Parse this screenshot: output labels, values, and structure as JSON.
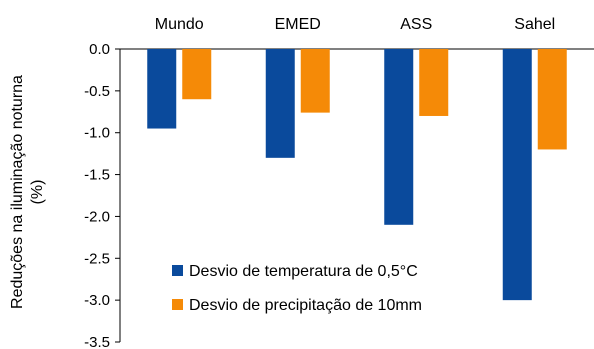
{
  "chart_data": {
    "type": "bar",
    "categories": [
      "Mundo",
      "EMED",
      "ASS",
      "Sahel"
    ],
    "series": [
      {
        "name": "Desvio de temperatura de 0,5°C",
        "color": "#0a4a9c",
        "values": [
          -0.95,
          -1.3,
          -2.1,
          -3.0
        ]
      },
      {
        "name": "Desvio de precipitação de 10mm",
        "color": "#f58a07",
        "values": [
          -0.6,
          -0.76,
          -0.8,
          -1.2
        ]
      }
    ],
    "ylabel": "Reduções na iluminação noturna (%)",
    "ylabel_lines": [
      "Reduções na iluminação noturna",
      "(%)"
    ],
    "ylim": [
      -3.5,
      0
    ],
    "yticks": [
      0,
      -0.5,
      -1,
      -1.5,
      -2,
      -2.5,
      -3,
      -3.5
    ],
    "ytick_labels": [
      "0.0",
      "-0.5",
      "-1.0",
      "-1.5",
      "-2.0",
      "-2.5",
      "-3.0",
      "-3.5"
    ],
    "category_labels_position": "top",
    "grid": false,
    "legend_position": "bottom-center"
  }
}
